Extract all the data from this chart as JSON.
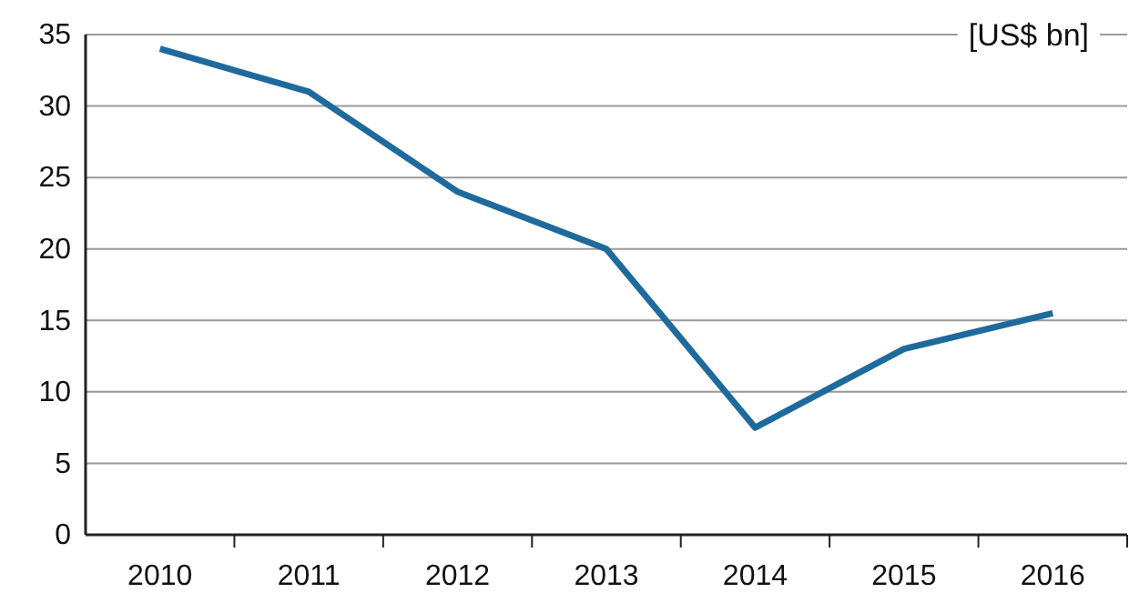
{
  "chart_data": {
    "type": "line",
    "ylabel": "[US$ bn]",
    "categories": [
      "2010",
      "2011",
      "2012",
      "2013",
      "2014",
      "2015",
      "2016"
    ],
    "series": [
      {
        "color": "#1f6a9c",
        "values": [
          34,
          31,
          24,
          20,
          7.5,
          13,
          15.5
        ]
      }
    ],
    "ylim": [
      0,
      35
    ],
    "yticks": [
      0,
      5,
      10,
      15,
      20,
      25,
      30,
      35
    ],
    "grid": "y",
    "marker": "none",
    "line_style": "solid"
  }
}
